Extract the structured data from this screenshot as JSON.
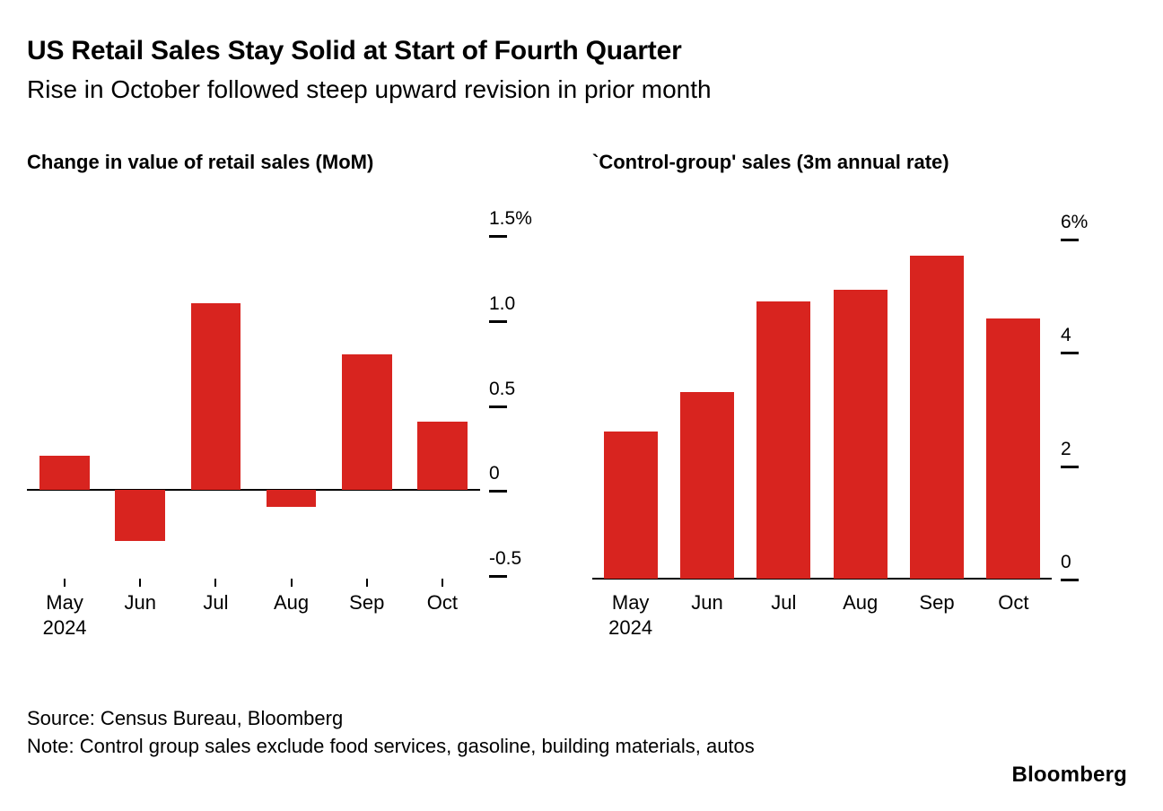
{
  "header": {
    "title": "US Retail Sales Stay Solid at Start of Fourth Quarter",
    "subtitle": "Rise in October followed steep upward revision in prior month"
  },
  "colors": {
    "bar": "#d8241f",
    "axis": "#000000",
    "background": "#ffffff",
    "text": "#000000"
  },
  "chart_data": [
    {
      "type": "bar",
      "title": "Change in value of retail sales (MoM)",
      "categories": [
        "May",
        "Jun",
        "Jul",
        "Aug",
        "Sep",
        "Oct"
      ],
      "x_first_sub_label": "2024",
      "values": [
        0.2,
        -0.3,
        1.1,
        -0.1,
        0.8,
        0.4
      ],
      "ylim": [
        -0.52,
        1.71
      ],
      "y_ticks": [
        {
          "label": "1.5%",
          "value": 1.5
        },
        {
          "label": "1.0",
          "value": 1.0
        },
        {
          "label": "0.5",
          "value": 0.5
        },
        {
          "label": "0",
          "value": 0
        },
        {
          "label": "-0.5",
          "value": -0.5
        }
      ],
      "show_x_ticks": true,
      "bar_fraction": 0.66,
      "legend": "none",
      "grid": "off"
    },
    {
      "type": "bar",
      "title": "`Control-group' sales (3m annual rate)",
      "categories": [
        "May",
        "Jun",
        "Jul",
        "Aug",
        "Sep",
        "Oct"
      ],
      "x_first_sub_label": "2024",
      "values": [
        2.6,
        3.3,
        4.9,
        5.1,
        5.7,
        4.6
      ],
      "ylim": [
        0,
        6.7
      ],
      "y_ticks": [
        {
          "label": "6%",
          "value": 6
        },
        {
          "label": "4",
          "value": 4
        },
        {
          "label": "2",
          "value": 2
        },
        {
          "label": "0",
          "value": 0
        }
      ],
      "show_x_ticks": false,
      "bar_fraction": 0.7,
      "legend": "none",
      "grid": "off"
    }
  ],
  "footer": {
    "source": "Source: Census Bureau, Bloomberg",
    "note": "Note: Control group sales exclude food services, gasoline, building materials, autos",
    "logo": "Bloomberg"
  }
}
